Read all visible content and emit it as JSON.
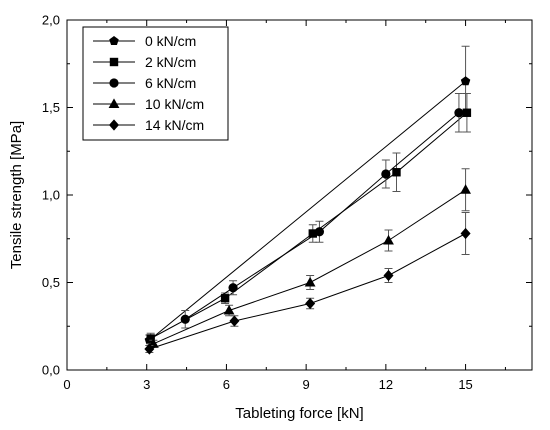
{
  "chart_data": {
    "type": "line",
    "xlabel": "Tableting force [kN]",
    "ylabel": "Tensile strength [MPa]",
    "xlim": [
      0,
      17.5
    ],
    "ylim": [
      0,
      2.0
    ],
    "xticks": [
      0,
      3,
      6,
      9,
      12,
      15
    ],
    "xtick_labels": [
      "0",
      "3",
      "6",
      "9",
      "12",
      "15"
    ],
    "yticks": [
      0,
      0.5,
      1.0,
      1.5,
      2.0
    ],
    "ytick_labels": [
      "0,0",
      "0,5",
      "1,0",
      "1,5",
      "2,0"
    ],
    "legend_position": "top-left",
    "grid": false,
    "series": [
      {
        "name": "0 kN/cm",
        "marker": "pentagon",
        "points": [
          {
            "x": 3.1,
            "y": 0.17,
            "err": 0.03
          },
          {
            "x": 15.0,
            "y": 1.65,
            "err": 0.2
          }
        ]
      },
      {
        "name": "2 kN/cm",
        "marker": "square",
        "points": [
          {
            "x": 3.15,
            "y": 0.18,
            "err": 0.03
          },
          {
            "x": 5.95,
            "y": 0.41,
            "err": 0.03
          },
          {
            "x": 9.25,
            "y": 0.78,
            "err": 0.05
          },
          {
            "x": 12.4,
            "y": 1.13,
            "err": 0.11
          },
          {
            "x": 15.05,
            "y": 1.47,
            "err": 0.11
          }
        ]
      },
      {
        "name": "6 kN/cm",
        "marker": "circle",
        "points": [
          {
            "x": 4.45,
            "y": 0.29,
            "err": 0.05
          },
          {
            "x": 6.25,
            "y": 0.47,
            "err": 0.04
          },
          {
            "x": 9.5,
            "y": 0.79,
            "err": 0.06
          },
          {
            "x": 12.0,
            "y": 1.12,
            "err": 0.08
          },
          {
            "x": 14.75,
            "y": 1.47,
            "err": 0.11
          }
        ]
      },
      {
        "name": "10 kN/cm",
        "marker": "triangle",
        "points": [
          {
            "x": 3.25,
            "y": 0.15,
            "err": 0.02
          },
          {
            "x": 6.1,
            "y": 0.34,
            "err": 0.03
          },
          {
            "x": 9.15,
            "y": 0.5,
            "err": 0.04
          },
          {
            "x": 12.1,
            "y": 0.74,
            "err": 0.06
          },
          {
            "x": 15.0,
            "y": 1.03,
            "err": 0.12
          }
        ]
      },
      {
        "name": "14 kN/cm",
        "marker": "diamond",
        "points": [
          {
            "x": 3.1,
            "y": 0.12,
            "err": 0.02
          },
          {
            "x": 6.3,
            "y": 0.28,
            "err": 0.03
          },
          {
            "x": 9.15,
            "y": 0.38,
            "err": 0.03
          },
          {
            "x": 12.1,
            "y": 0.54,
            "err": 0.04
          },
          {
            "x": 15.0,
            "y": 0.78,
            "err": 0.12
          }
        ]
      }
    ]
  }
}
